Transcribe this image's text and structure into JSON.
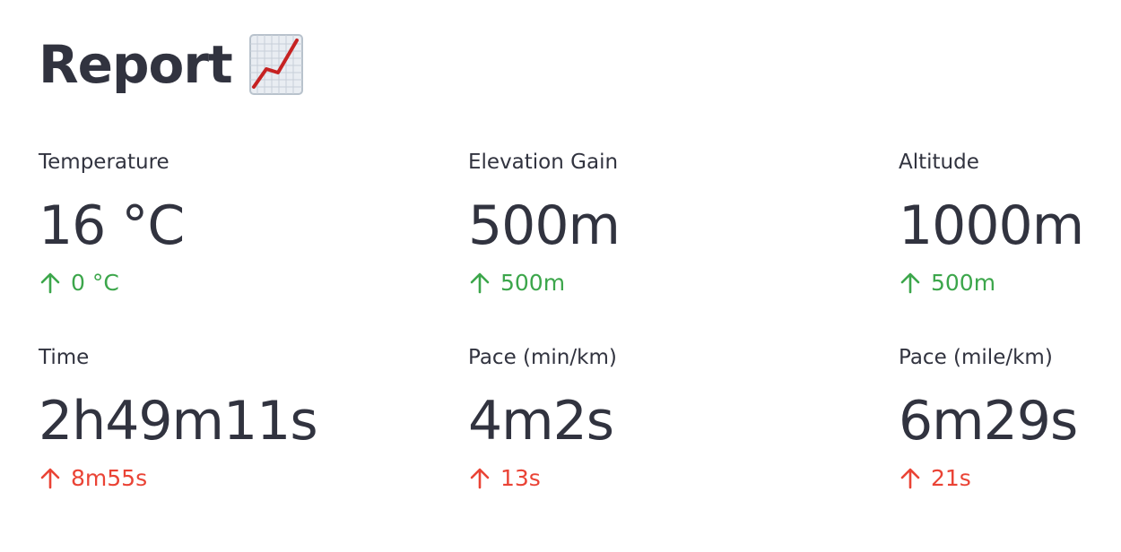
{
  "header": {
    "title": "Report"
  },
  "colors": {
    "text": "#31333f",
    "positive": "#3ca64b",
    "negative": "#ea4335"
  },
  "metrics": [
    {
      "label": "Temperature",
      "value": "16 °C",
      "delta": "0 °C",
      "delta_direction": "up",
      "delta_color": "#3ca64b",
      "delta_icon": "arrow-up-icon"
    },
    {
      "label": "Elevation Gain",
      "value": "500m",
      "delta": "500m",
      "delta_direction": "up",
      "delta_color": "#3ca64b",
      "delta_icon": "arrow-up-icon"
    },
    {
      "label": "Altitude",
      "value": "1000m",
      "delta": "500m",
      "delta_direction": "up",
      "delta_color": "#3ca64b",
      "delta_icon": "arrow-up-icon"
    },
    {
      "label": "Time",
      "value": "2h49m11s",
      "delta": "8m55s",
      "delta_direction": "up",
      "delta_color": "#ea4335",
      "delta_icon": "arrow-up-icon"
    },
    {
      "label": "Pace (min/km)",
      "value": "4m2s",
      "delta": "13s",
      "delta_direction": "up",
      "delta_color": "#ea4335",
      "delta_icon": "arrow-up-icon"
    },
    {
      "label": "Pace (mile/km)",
      "value": "6m29s",
      "delta": "21s",
      "delta_direction": "up",
      "delta_color": "#ea4335",
      "delta_icon": "arrow-up-icon"
    }
  ],
  "title_icon": "chart-increasing-icon"
}
